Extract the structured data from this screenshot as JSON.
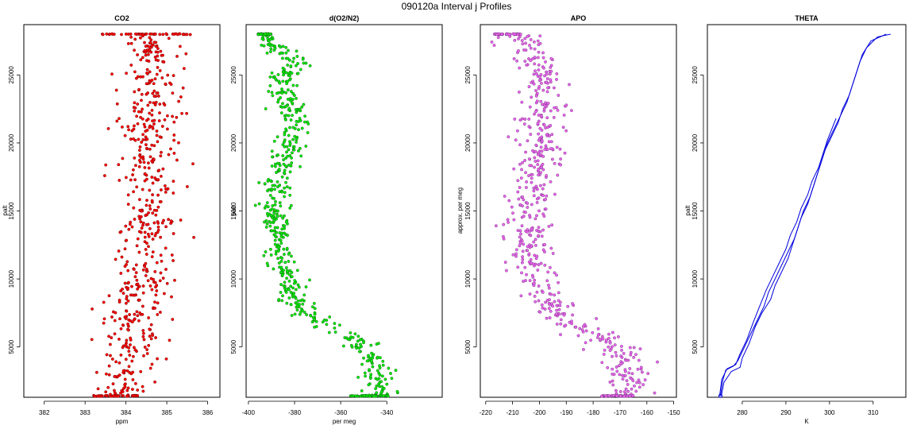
{
  "figure": {
    "title": "090120a   Interval j Profiles"
  },
  "chart_data": [
    {
      "type": "scatter",
      "title": "CO2",
      "xlabel": "ppm",
      "ylabel": "palt",
      "xlim": [
        381.5,
        386.3
      ],
      "ylim": [
        1300,
        28700
      ],
      "xticks": [
        382,
        383,
        384,
        385,
        386
      ],
      "yticks": [
        5000,
        10000,
        15000,
        20000,
        25000
      ],
      "color": "#ff0000",
      "edge": "#7a1010",
      "profile": [
        [
          1400,
          384.0
        ],
        [
          3000,
          383.9
        ],
        [
          5000,
          384.1
        ],
        [
          7000,
          384.2
        ],
        [
          9000,
          384.3
        ],
        [
          11000,
          384.4
        ],
        [
          13000,
          384.5
        ],
        [
          15000,
          384.5
        ],
        [
          17000,
          384.6
        ],
        [
          19000,
          384.6
        ],
        [
          21000,
          384.6
        ],
        [
          23000,
          384.7
        ],
        [
          25000,
          384.6
        ],
        [
          27000,
          384.6
        ],
        [
          28000,
          384.6
        ]
      ],
      "spread": [
        [
          1400,
          0.45
        ],
        [
          5000,
          0.45
        ],
        [
          10000,
          0.45
        ],
        [
          15000,
          0.5
        ],
        [
          20000,
          0.5
        ],
        [
          25000,
          0.5
        ],
        [
          28000,
          0.5
        ]
      ],
      "top_band": {
        "palt": 28000,
        "range": [
          383.4,
          385.6
        ]
      },
      "bottom_band": {
        "palt": 1400,
        "range": [
          383.2,
          384.3
        ]
      }
    },
    {
      "type": "scatter",
      "title": "d(O2/N2)",
      "xlabel": "per meg",
      "ylabel": "palt",
      "xlim": [
        -401,
        -316
      ],
      "ylim": [
        1300,
        28700
      ],
      "xticks": [
        -400,
        -380,
        -360,
        -340
      ],
      "yticks": [
        5000,
        10000,
        15000,
        20000,
        25000
      ],
      "color": "#00ee00",
      "edge": "#1f6a1f",
      "profile": [
        [
          1400,
          -343
        ],
        [
          2500,
          -343
        ],
        [
          3500,
          -345
        ],
        [
          4500,
          -348
        ],
        [
          5500,
          -352
        ],
        [
          6500,
          -365
        ],
        [
          7500,
          -375
        ],
        [
          8500,
          -381
        ],
        [
          9500,
          -382
        ],
        [
          11000,
          -384
        ],
        [
          12500,
          -387
        ],
        [
          14000,
          -388
        ],
        [
          15500,
          -389
        ],
        [
          17000,
          -388
        ],
        [
          18500,
          -384
        ],
        [
          20000,
          -381
        ],
        [
          21500,
          -380
        ],
        [
          23000,
          -383
        ],
        [
          24500,
          -384
        ],
        [
          26000,
          -380
        ],
        [
          27000,
          -388
        ],
        [
          28000,
          -393
        ]
      ],
      "spread": [
        [
          1400,
          5
        ],
        [
          5000,
          5
        ],
        [
          10000,
          4
        ],
        [
          15000,
          4
        ],
        [
          20000,
          5
        ],
        [
          25000,
          5
        ],
        [
          28000,
          3
        ]
      ],
      "top_band": {
        "palt": 28000,
        "range": [
          -396,
          -390
        ]
      },
      "bottom_band": {
        "palt": 1400,
        "range": [
          -356,
          -339
        ]
      }
    },
    {
      "type": "scatter",
      "title": "APO",
      "xlabel": "",
      "ylabel": "approx. per meg",
      "xlim": [
        -222,
        -149
      ],
      "ylim": [
        1300,
        28700
      ],
      "xticks": [
        -220,
        -210,
        -200,
        -190,
        -180,
        -170,
        -160,
        -150
      ],
      "yticks": [
        5000,
        10000,
        15000,
        20000,
        25000
      ],
      "color": "#ee66ee",
      "edge": "#7a3a8a",
      "profile": [
        [
          1400,
          -167
        ],
        [
          2500,
          -167
        ],
        [
          3500,
          -168
        ],
        [
          4500,
          -170
        ],
        [
          5500,
          -174
        ],
        [
          6500,
          -185
        ],
        [
          7500,
          -195
        ],
        [
          9000,
          -200
        ],
        [
          11000,
          -202
        ],
        [
          13000,
          -204
        ],
        [
          15000,
          -205
        ],
        [
          17000,
          -203
        ],
        [
          19000,
          -200
        ],
        [
          21000,
          -199
        ],
        [
          23000,
          -200
        ],
        [
          25000,
          -199
        ],
        [
          26500,
          -202
        ],
        [
          28000,
          -210
        ]
      ],
      "spread": [
        [
          1400,
          5
        ],
        [
          5000,
          6
        ],
        [
          10000,
          6
        ],
        [
          15000,
          6
        ],
        [
          20000,
          6
        ],
        [
          25000,
          6
        ],
        [
          28000,
          5
        ]
      ],
      "top_band": {
        "palt": 28000,
        "range": [
          -217,
          -207
        ]
      },
      "bottom_band": {
        "palt": 1400,
        "range": [
          -177,
          -163
        ]
      }
    },
    {
      "type": "line",
      "title": "THETA",
      "xlabel": "K",
      "ylabel": "palt",
      "xlim": [
        272,
        317.5
      ],
      "ylim": [
        1300,
        28700
      ],
      "xticks": [
        280,
        290,
        300,
        310
      ],
      "yticks": [
        5000,
        10000,
        15000,
        20000,
        25000
      ],
      "color": "#0000dd",
      "series": [
        {
          "points": [
            [
              1400,
              275.0
            ],
            [
              2500,
              275.5
            ],
            [
              3300,
              276.2
            ],
            [
              3600,
              278.0
            ],
            [
              4000,
              279.0
            ],
            [
              5000,
              280.5
            ],
            [
              6000,
              282.0
            ],
            [
              7000,
              283.5
            ],
            [
              8000,
              285.0
            ],
            [
              9000,
              286.0
            ],
            [
              10000,
              287.5
            ],
            [
              11000,
              289.0
            ],
            [
              12000,
              290.5
            ],
            [
              13000,
              292.0
            ],
            [
              14000,
              293.0
            ],
            [
              15000,
              294.0
            ],
            [
              16000,
              295.5
            ],
            [
              17000,
              296.5
            ],
            [
              18000,
              297.5
            ],
            [
              19000,
              298.5
            ],
            [
              20000,
              299.5
            ],
            [
              21000,
              301.0
            ],
            [
              22000,
              302.5
            ],
            [
              23000,
              304.0
            ],
            [
              24000,
              305.0
            ],
            [
              25000,
              306.0
            ],
            [
              26000,
              307.0
            ],
            [
              27000,
              308.5
            ],
            [
              27800,
              311.0
            ],
            [
              28000,
              314.0
            ]
          ]
        },
        {
          "points": [
            [
              1400,
              275.2
            ],
            [
              2400,
              275.8
            ],
            [
              3200,
              277.5
            ],
            [
              3500,
              279.5
            ],
            [
              4200,
              280.0
            ],
            [
              5200,
              281.5
            ],
            [
              6500,
              283.0
            ],
            [
              7500,
              284.5
            ],
            [
              8500,
              286.5
            ],
            [
              9500,
              287.5
            ],
            [
              10500,
              289.0
            ],
            [
              11500,
              290.5
            ],
            [
              12500,
              291.5
            ],
            [
              13500,
              292.5
            ],
            [
              14500,
              293.5
            ],
            [
              15500,
              295.0
            ],
            [
              16500,
              296.0
            ],
            [
              17500,
              297.0
            ],
            [
              18500,
              298.0
            ],
            [
              19500,
              299.0
            ],
            [
              20500,
              300.5
            ],
            [
              21500,
              302.0
            ],
            [
              22500,
              303.0
            ],
            [
              23500,
              304.5
            ],
            [
              24500,
              305.5
            ],
            [
              25500,
              306.5
            ],
            [
              26500,
              307.5
            ],
            [
              27500,
              309.5
            ],
            [
              28000,
              313.0
            ]
          ]
        },
        {
          "points": [
            [
              1400,
              274.8
            ],
            [
              2600,
              275.3
            ],
            [
              3400,
              276.5
            ],
            [
              3700,
              278.5
            ],
            [
              4500,
              279.5
            ],
            [
              5500,
              281.0
            ],
            [
              6800,
              282.5
            ],
            [
              8000,
              284.0
            ],
            [
              9200,
              285.5
            ],
            [
              10200,
              287.0
            ],
            [
              11200,
              288.5
            ],
            [
              12200,
              290.0
            ],
            [
              13200,
              291.0
            ],
            [
              14200,
              292.5
            ],
            [
              15200,
              293.5
            ],
            [
              16200,
              295.0
            ],
            [
              17200,
              296.0
            ],
            [
              18200,
              297.5
            ],
            [
              19200,
              298.5
            ],
            [
              20200,
              299.5
            ],
            [
              21000,
              300.5
            ],
            [
              21800,
              301.5
            ]
          ]
        }
      ]
    }
  ]
}
